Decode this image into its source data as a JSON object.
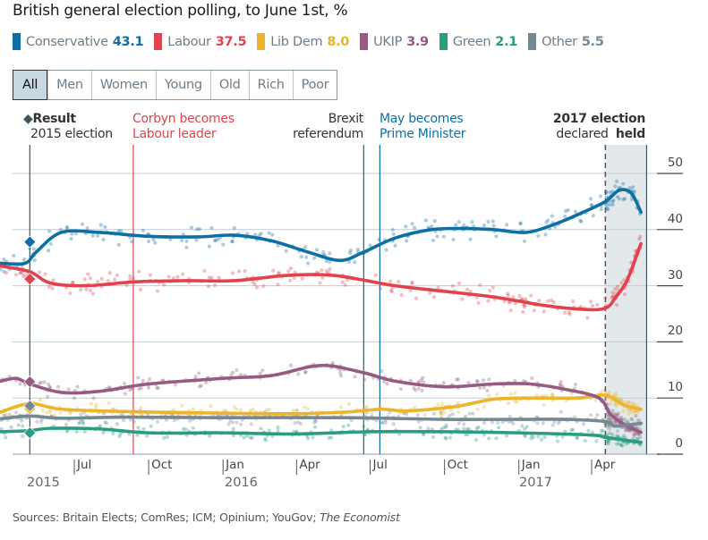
{
  "title": "British general election polling, to June 1st, %",
  "legend": [
    {
      "name": "Conservative",
      "value": "43.1",
      "color": "#0e6fa5"
    },
    {
      "name": "Labour",
      "value": "37.5",
      "color": "#e0424e"
    },
    {
      "name": "Lib Dem",
      "value": "8.0",
      "color": "#ecb42c"
    },
    {
      "name": "UKIP",
      "value": "3.9",
      "color": "#955b80"
    },
    {
      "name": "Green",
      "value": "2.1",
      "color": "#2a9c82"
    },
    {
      "name": "Other",
      "value": "5.5",
      "color": "#758893"
    }
  ],
  "tabs": [
    {
      "label": "All",
      "active": true
    },
    {
      "label": "Men",
      "active": false
    },
    {
      "label": "Women",
      "active": false
    },
    {
      "label": "Young",
      "active": false
    },
    {
      "label": "Old",
      "active": false
    },
    {
      "label": "Rich",
      "active": false
    },
    {
      "label": "Poor",
      "active": false
    }
  ],
  "annotations": {
    "result_title": "Result",
    "result_sub": "2015 election",
    "corbyn_1": "Corbyn becomes",
    "corbyn_2": "Labour leader",
    "brexit_1": "Brexit",
    "brexit_2": "referendum",
    "may_1": "May becomes",
    "may_2": "Prime Minister",
    "election_1": "2017 election",
    "election_declared": "declared",
    "election_held": "held"
  },
  "source": "Sources: Britain Elects; ComRes; ICM; Opinium; YouGov;",
  "source_italic": "The Economist",
  "chart_data": {
    "type": "line",
    "title": "British general election polling, to June 1st, %",
    "xlabel": "",
    "ylabel": "%",
    "ylim": [
      0,
      50
    ],
    "yticks": [
      0,
      10,
      20,
      30,
      40,
      50
    ],
    "x_range": [
      "2015-04-01",
      "2017-06-08"
    ],
    "xticks": [
      {
        "label": "Jul",
        "date": "2015-07-01"
      },
      {
        "label": "Oct",
        "date": "2015-10-01"
      },
      {
        "label": "Jan",
        "date": "2016-01-01"
      },
      {
        "label": "Apr",
        "date": "2016-04-01"
      },
      {
        "label": "Jul",
        "date": "2016-07-01"
      },
      {
        "label": "Oct",
        "date": "2016-10-01"
      },
      {
        "label": "Jan",
        "date": "2017-01-01"
      },
      {
        "label": "Apr",
        "date": "2017-04-01"
      }
    ],
    "year_labels": [
      {
        "label": "2015",
        "date": "2015-04-01"
      },
      {
        "label": "2016",
        "date": "2016-01-01"
      },
      {
        "label": "2017",
        "date": "2017-01-01"
      }
    ],
    "events": [
      {
        "name": "2015 election result",
        "date": "2015-05-07",
        "color": "#3f5661"
      },
      {
        "name": "Corbyn becomes Labour leader",
        "date": "2015-09-12",
        "color": "#e0424e"
      },
      {
        "name": "Brexit referendum",
        "date": "2016-06-23",
        "color": "#3f5661"
      },
      {
        "name": "May becomes Prime Minister",
        "date": "2016-07-13",
        "color": "#0e6fa5"
      },
      {
        "name": "2017 election declared",
        "date": "2017-04-18",
        "color": "#555555"
      },
      {
        "name": "2017 election held",
        "date": "2017-06-08",
        "color": "#3f5661"
      }
    ],
    "result_2015": [
      {
        "party": "Conservative",
        "value": 37.8
      },
      {
        "party": "Labour",
        "value": 31.2
      },
      {
        "party": "UKIP",
        "value": 12.9
      },
      {
        "party": "Lib Dem",
        "value": 8.1
      },
      {
        "party": "Other",
        "value": 8.6
      },
      {
        "party": "Green",
        "value": 3.8
      }
    ],
    "series": [
      {
        "name": "Conservative",
        "color": "#0e6fa5",
        "points": [
          [
            "2015-04-01",
            34
          ],
          [
            "2015-05-01",
            34
          ],
          [
            "2015-05-15",
            36
          ],
          [
            "2015-06-15",
            39.5
          ],
          [
            "2015-08-01",
            39.5
          ],
          [
            "2015-10-01",
            38.8
          ],
          [
            "2015-12-01",
            38.7
          ],
          [
            "2016-01-15",
            39
          ],
          [
            "2016-03-01",
            38
          ],
          [
            "2016-04-15",
            36
          ],
          [
            "2016-05-25",
            34.5
          ],
          [
            "2016-06-23",
            36
          ],
          [
            "2016-08-01",
            38.5
          ],
          [
            "2016-09-15",
            40
          ],
          [
            "2016-10-25",
            40.2
          ],
          [
            "2016-12-01",
            40
          ],
          [
            "2017-01-10",
            39.5
          ],
          [
            "2017-02-15",
            41
          ],
          [
            "2017-03-20",
            43
          ],
          [
            "2017-04-18",
            45
          ],
          [
            "2017-05-05",
            47
          ],
          [
            "2017-05-20",
            46.5
          ],
          [
            "2017-06-01",
            43.1
          ]
        ]
      },
      {
        "name": "Labour",
        "color": "#e0424e",
        "points": [
          [
            "2015-04-01",
            33.5
          ],
          [
            "2015-05-07",
            32.5
          ],
          [
            "2015-06-01",
            30.5
          ],
          [
            "2015-07-15",
            30
          ],
          [
            "2015-09-15",
            30.7
          ],
          [
            "2015-11-15",
            30.9
          ],
          [
            "2016-01-15",
            30.9
          ],
          [
            "2016-03-15",
            31.8
          ],
          [
            "2016-04-20",
            32
          ],
          [
            "2016-05-20",
            31.8
          ],
          [
            "2016-06-23",
            31
          ],
          [
            "2016-08-01",
            30
          ],
          [
            "2016-10-01",
            29
          ],
          [
            "2016-12-01",
            28
          ],
          [
            "2017-02-01",
            26.5
          ],
          [
            "2017-03-20",
            25.8
          ],
          [
            "2017-04-18",
            26
          ],
          [
            "2017-05-01",
            28
          ],
          [
            "2017-05-15",
            31
          ],
          [
            "2017-06-01",
            37.5
          ]
        ]
      },
      {
        "name": "Lib Dem",
        "color": "#ecb42c",
        "points": [
          [
            "2015-04-01",
            7.5
          ],
          [
            "2015-05-07",
            9
          ],
          [
            "2015-06-15",
            8
          ],
          [
            "2015-09-01",
            7.6
          ],
          [
            "2016-01-01",
            7.3
          ],
          [
            "2016-04-01",
            7.2
          ],
          [
            "2016-06-01",
            7.5
          ],
          [
            "2016-07-15",
            8
          ],
          [
            "2016-08-15",
            7.7
          ],
          [
            "2016-10-15",
            8.5
          ],
          [
            "2016-12-01",
            9.8
          ],
          [
            "2017-01-15",
            10
          ],
          [
            "2017-03-15",
            10
          ],
          [
            "2017-04-18",
            10.5
          ],
          [
            "2017-05-10",
            8.8
          ],
          [
            "2017-06-01",
            8.0
          ]
        ]
      },
      {
        "name": "UKIP",
        "color": "#955b80",
        "points": [
          [
            "2015-04-01",
            13
          ],
          [
            "2015-04-20",
            13.5
          ],
          [
            "2015-05-07",
            12.5
          ],
          [
            "2015-06-15",
            11
          ],
          [
            "2015-08-01",
            11.2
          ],
          [
            "2015-10-01",
            12.5
          ],
          [
            "2016-01-01",
            13.5
          ],
          [
            "2016-03-01",
            14
          ],
          [
            "2016-05-01",
            15.8
          ],
          [
            "2016-06-23",
            14.5
          ],
          [
            "2016-08-01",
            13
          ],
          [
            "2016-10-01",
            12
          ],
          [
            "2016-12-01",
            12.5
          ],
          [
            "2017-01-15",
            12.5
          ],
          [
            "2017-03-01",
            11.5
          ],
          [
            "2017-04-10",
            10
          ],
          [
            "2017-04-25",
            7
          ],
          [
            "2017-05-15",
            5
          ],
          [
            "2017-06-01",
            3.9
          ]
        ]
      },
      {
        "name": "Other",
        "color": "#758893",
        "points": [
          [
            "2015-04-01",
            6.3
          ],
          [
            "2015-05-07",
            6.8
          ],
          [
            "2015-06-15",
            6.4
          ],
          [
            "2015-09-01",
            6.6
          ],
          [
            "2016-01-01",
            6.5
          ],
          [
            "2016-06-01",
            6.5
          ],
          [
            "2016-10-01",
            6.2
          ],
          [
            "2017-01-01",
            6.2
          ],
          [
            "2017-03-01",
            6.2
          ],
          [
            "2017-04-18",
            5.8
          ],
          [
            "2017-05-01",
            5
          ],
          [
            "2017-06-01",
            5.5
          ]
        ]
      },
      {
        "name": "Green",
        "color": "#2a9c82",
        "points": [
          [
            "2015-04-01",
            4
          ],
          [
            "2015-05-07",
            4.2
          ],
          [
            "2015-06-01",
            4.6
          ],
          [
            "2015-08-01",
            4.5
          ],
          [
            "2015-10-01",
            3.8
          ],
          [
            "2016-01-01",
            3.8
          ],
          [
            "2016-04-01",
            3.6
          ],
          [
            "2016-07-01",
            4
          ],
          [
            "2016-10-01",
            4
          ],
          [
            "2017-01-01",
            3.8
          ],
          [
            "2017-04-01",
            3.4
          ],
          [
            "2017-04-18",
            3
          ],
          [
            "2017-06-01",
            2.1
          ]
        ]
      }
    ]
  }
}
